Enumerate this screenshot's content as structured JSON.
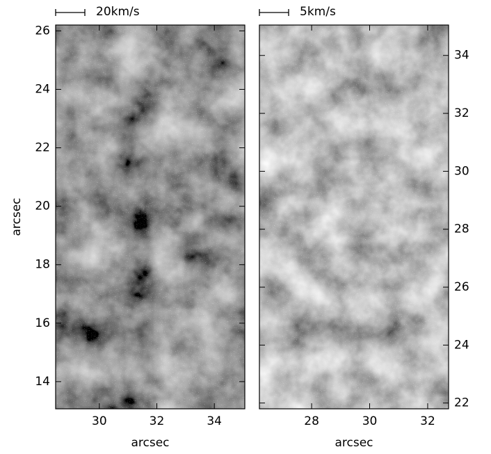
{
  "chart_data": [
    {
      "type": "image",
      "xlabel": "arcsec",
      "ylabel": "arcsec",
      "yaxis_side": "left",
      "scale_label": "20km/s",
      "xlim": [
        28.48,
        35.06
      ],
      "ylim": [
        13.07,
        26.2
      ],
      "xticks": [
        30,
        32,
        34
      ],
      "yticks": [
        14,
        16,
        18,
        20,
        22,
        24,
        26
      ]
    },
    {
      "type": "image",
      "xlabel": "arcsec",
      "yaxis_side": "right",
      "scale_label": "5km/s",
      "xlim": [
        26.2,
        32.72
      ],
      "ylim": [
        21.8,
        35.05
      ],
      "xticks": [
        28,
        30,
        32
      ],
      "yticks": [
        22,
        24,
        26,
        28,
        30,
        32,
        34
      ]
    }
  ]
}
